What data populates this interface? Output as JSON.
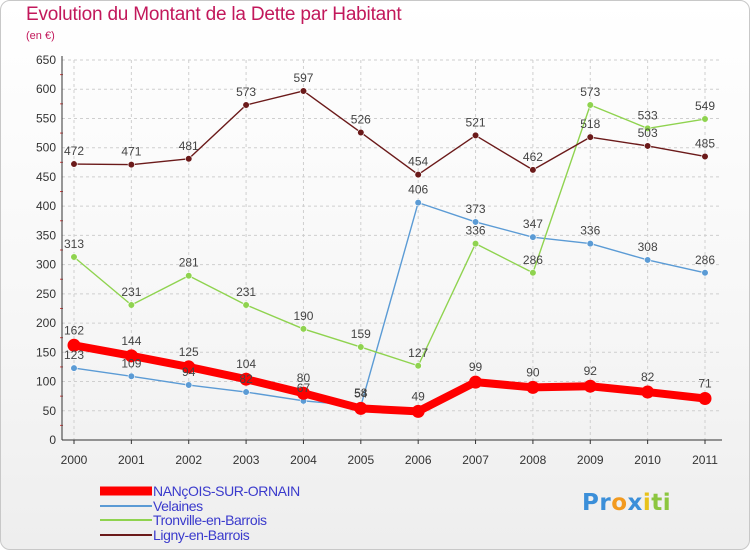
{
  "header": {
    "title": "Evolution du Montant de la Dette par Habitant",
    "unit": "(en €)"
  },
  "logo": {
    "parts": [
      {
        "text": "Pr",
        "color": "#3b8fd9"
      },
      {
        "text": "o",
        "color": "#f29a1f"
      },
      {
        "text": "x",
        "color": "#3b8fd9"
      },
      {
        "text": "i",
        "color": "#e8c21a"
      },
      {
        "text": "ti",
        "color": "#8cc63f"
      }
    ]
  },
  "chart_data": {
    "type": "line",
    "x": [
      "2000",
      "2001",
      "2002",
      "2003",
      "2004",
      "2005",
      "2006",
      "2007",
      "2008",
      "2009",
      "2010",
      "2011"
    ],
    "yticks": [
      0,
      50,
      100,
      150,
      200,
      250,
      300,
      350,
      400,
      450,
      500,
      550,
      600,
      650
    ],
    "ylim": [
      0,
      650
    ],
    "grid": true,
    "legend_position": "bottom-left",
    "series": [
      {
        "name": "NANçOIS-SUR-ORNAIN",
        "color": "#ff0000",
        "emphasis": true,
        "values": [
          162,
          144,
          125,
          104,
          80,
          54,
          49,
          99,
          90,
          92,
          82,
          71
        ]
      },
      {
        "name": "Velaines",
        "color": "#5b9bd5",
        "values": [
          123,
          109,
          94,
          82,
          67,
          58,
          406,
          373,
          347,
          336,
          308,
          286
        ]
      },
      {
        "name": "Tronville-en-Barrois",
        "color": "#8fd34f",
        "values": [
          313,
          231,
          281,
          231,
          190,
          159,
          127,
          336,
          286,
          573,
          533,
          549
        ]
      },
      {
        "name": "Ligny-en-Barrois",
        "color": "#6b1a1a",
        "values": [
          472,
          471,
          481,
          573,
          597,
          526,
          454,
          521,
          462,
          518,
          503,
          485
        ]
      }
    ]
  }
}
